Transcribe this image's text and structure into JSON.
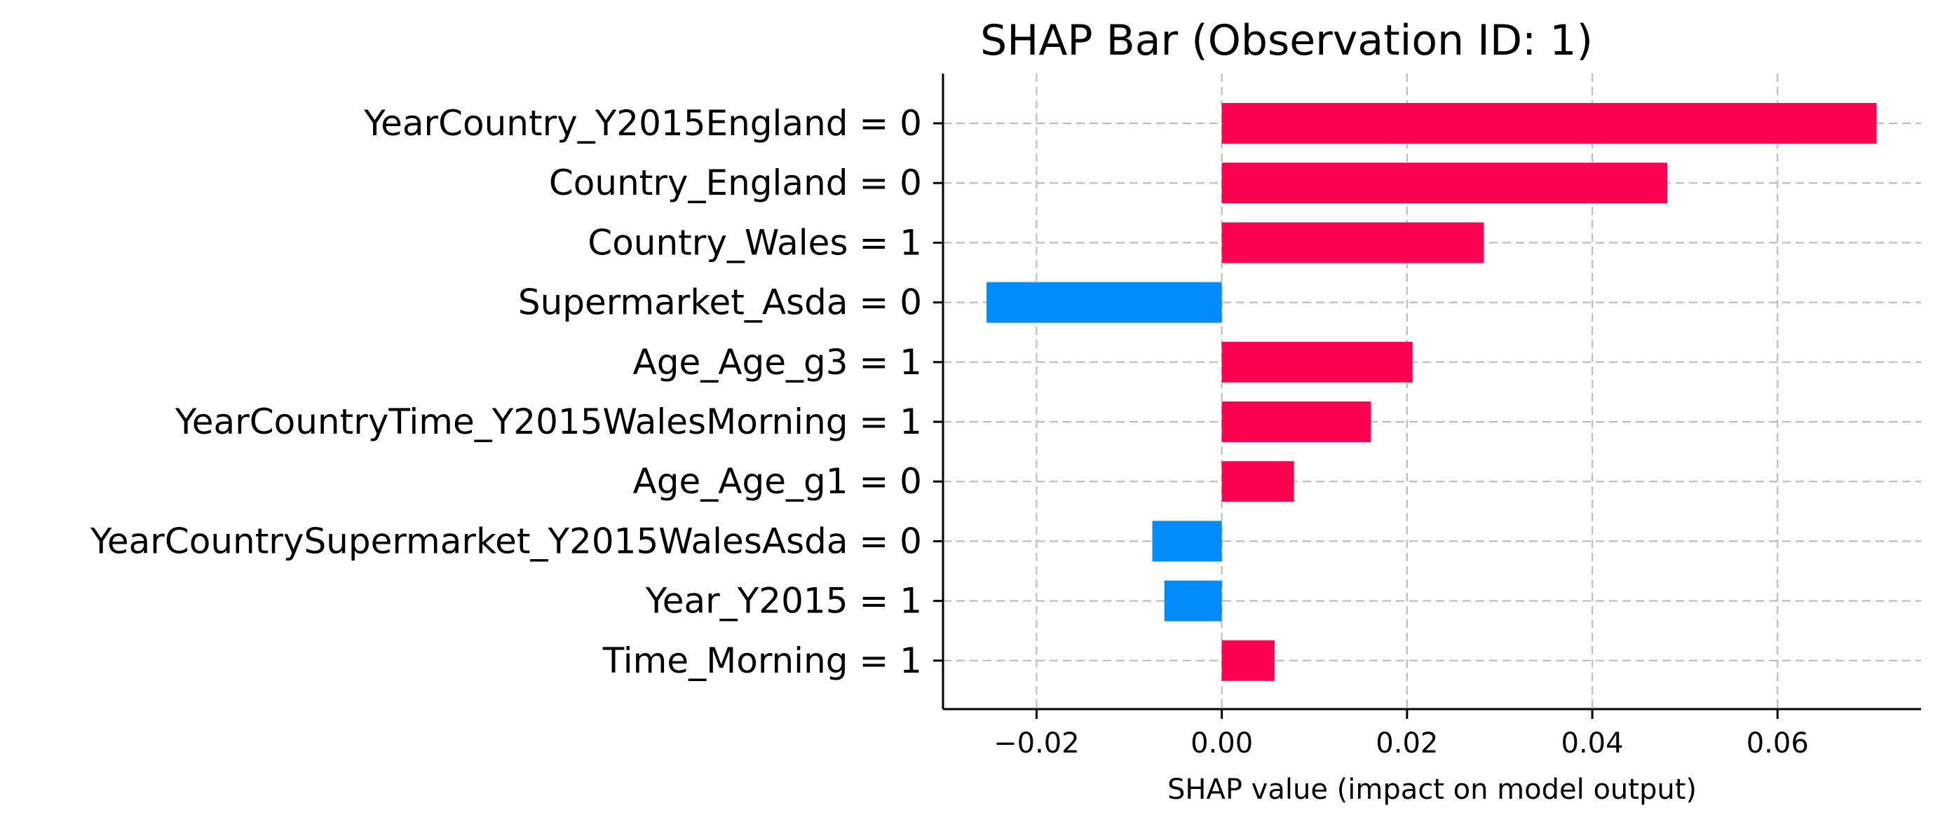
{
  "chart_data": {
    "type": "bar",
    "orientation": "horizontal",
    "title": "SHAP Bar (Observation ID: 1)",
    "xlabel": "SHAP value (impact on model output)",
    "ylabel": "",
    "categories": [
      "YearCountry_Y2015England = 0",
      "Country_England = 0",
      "Country_Wales = 1",
      "Supermarket_Asda = 0",
      "Age_Age_g3 = 1",
      "YearCountryTime_Y2015WalesMorning = 1",
      "Age_Age_g1 = 0",
      "YearCountrySupermarket_Y2015WalesAsda = 0",
      "Year_Y2015 = 1",
      "Time_Morning = 1"
    ],
    "values": [
      0.0707,
      0.0481,
      0.0283,
      -0.0254,
      0.0206,
      0.0161,
      0.0078,
      -0.0075,
      -0.0062,
      0.0057
    ],
    "xlim": [
      -0.0301,
      0.0755
    ],
    "xticks": [
      -0.02,
      0.0,
      0.02,
      0.04,
      0.06
    ],
    "xtick_labels": [
      "−0.02",
      "0.00",
      "0.02",
      "0.04",
      "0.06"
    ],
    "colors": {
      "positive": "#ff0051",
      "negative": "#008bfb",
      "grid": "#bdbdbd",
      "axis": "#000000"
    },
    "grid": true,
    "grid_style": "dashed"
  }
}
